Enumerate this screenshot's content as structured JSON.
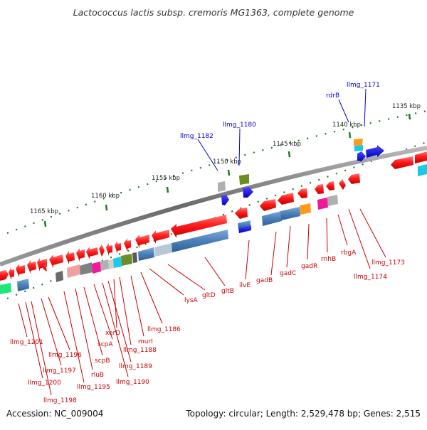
{
  "title": "Lactococcus lactis subsp. cremoris MG1363, complete genome",
  "footer": {
    "accession": "Accession: NC_009004",
    "topology": "Topology: circular; Length: 2,529,478 bp; Genes: 2,515"
  },
  "scale_labels": [
    "1135 kbp",
    "1140 kbp",
    "1145 kbp",
    "1150 kbp",
    "1155 kbp",
    "1160 kbp",
    "1165 kbp"
  ],
  "upper_gene_labels": [
    "llmg_1171",
    "rdrB",
    "llmg_1180",
    "llmg_1182"
  ],
  "lower_gene_labels": [
    "llmg_1173",
    "llmg_1174",
    "rbgA",
    "rnhB",
    "gadR",
    "gadC",
    "gadB",
    "ilvE",
    "gltB",
    "gltD",
    "lysA",
    "llmg_1186",
    "murI",
    "llmg_1188",
    "xerD",
    "llmg_1189",
    "llmg_1190",
    "scpA",
    "scpB",
    "rluB",
    "llmg_1195",
    "llmg_1196",
    "llmg_1197",
    "llmg_1198",
    "llmg_1200",
    "llmg_1201"
  ],
  "colors": {
    "backbone": "#7a7a7a",
    "tick": "#1f7a1f",
    "forward_label": "#0000cc",
    "reverse_label": "#cc0000",
    "gene_red": "#ff1a1a",
    "gene_blue": "#4a7fb8",
    "gene_darkblue": "#1010ee",
    "gene_olive": "#6b8e23",
    "gene_orange": "#ff9a1a",
    "gene_magenta": "#ee1a9a",
    "gene_cyan": "#1ac8e8",
    "gene_gray": "#b0b0b0",
    "gene_green": "#1ae87a"
  }
}
